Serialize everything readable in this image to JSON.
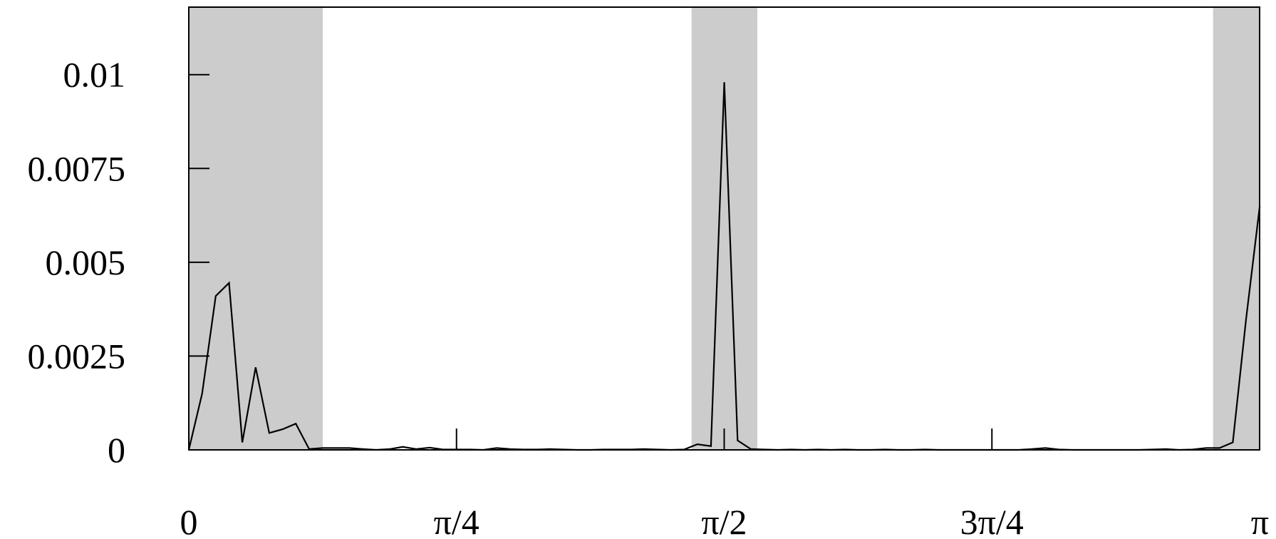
{
  "chart_data": {
    "type": "line",
    "title": "",
    "xlabel": "",
    "ylabel": "",
    "xlim": [
      0,
      3.14159265
    ],
    "ylim": [
      0,
      0.0118
    ],
    "grid": false,
    "legend": "none",
    "x_ticks": [
      {
        "value": 0,
        "label": "0"
      },
      {
        "value": 0.78539816,
        "label": "π/4"
      },
      {
        "value": 1.57079633,
        "label": "π/2"
      },
      {
        "value": 2.35619449,
        "label": "3π/4"
      },
      {
        "value": 3.14159265,
        "label": "π"
      }
    ],
    "y_ticks": [
      {
        "value": 0,
        "label": "0"
      },
      {
        "value": 0.0025,
        "label": "0.0025"
      },
      {
        "value": 0.005,
        "label": "0.005"
      },
      {
        "value": 0.0075,
        "label": "0.0075"
      },
      {
        "value": 0.01,
        "label": "0.01"
      }
    ],
    "shaded_bands": [
      {
        "x0": 0,
        "x1": 0.393
      },
      {
        "x0": 1.475,
        "x1": 1.668
      },
      {
        "x0": 3.005,
        "x1": 3.1416
      }
    ],
    "colors": {
      "band": "#cccccc",
      "line": "#000000",
      "frame": "#000000",
      "background": "#ffffff"
    },
    "series": [
      {
        "x": [
          0,
          0.039,
          0.079,
          0.118,
          0.157,
          0.196,
          0.236,
          0.275,
          0.314,
          0.353,
          0.393,
          0.432,
          0.471,
          0.511,
          0.55,
          0.589,
          0.628,
          0.668,
          0.707,
          0.746,
          0.785,
          0.825,
          0.864,
          0.903,
          0.942,
          0.982,
          1.021,
          1.06,
          1.1,
          1.139,
          1.178,
          1.217,
          1.257,
          1.296,
          1.335,
          1.374,
          1.414,
          1.453,
          1.492,
          1.532,
          1.571,
          1.61,
          1.649,
          1.689,
          1.728,
          1.767,
          1.806,
          1.846,
          1.885,
          1.924,
          1.963,
          2.003,
          2.042,
          2.081,
          2.121,
          2.16,
          2.199,
          2.238,
          2.278,
          2.317,
          2.356,
          2.395,
          2.435,
          2.474,
          2.513,
          2.553,
          2.592,
          2.631,
          2.67,
          2.71,
          2.749,
          2.788,
          2.827,
          2.867,
          2.906,
          2.945,
          2.985,
          3.024,
          3.063,
          3.102,
          3.142
        ],
        "y": [
          0,
          0.0015,
          0.0041,
          0.00445,
          0.0002,
          0.0022,
          0.00045,
          0.00055,
          0.0007,
          2e-05,
          5e-05,
          5e-05,
          5e-05,
          2e-05,
          0,
          2e-05,
          8e-05,
          2e-05,
          6e-05,
          1e-05,
          1e-05,
          1e-05,
          0,
          5e-05,
          2e-05,
          1e-05,
          1e-05,
          2e-05,
          1e-05,
          0,
          0,
          1e-05,
          1e-05,
          1e-05,
          2e-05,
          1e-05,
          0,
          1e-05,
          0.00015,
          0.0001,
          0.0098,
          0.00025,
          2e-05,
          1e-05,
          0,
          1e-05,
          0,
          1e-05,
          0,
          1e-05,
          0,
          0,
          1e-05,
          0,
          0,
          1e-05,
          0,
          0,
          0,
          0,
          0,
          0,
          0,
          2e-05,
          5e-05,
          1e-05,
          0,
          0,
          0,
          0,
          0,
          0,
          1e-05,
          2e-05,
          0,
          1e-05,
          5e-05,
          5e-05,
          0.0002,
          0.0035,
          0.0065
        ]
      }
    ]
  }
}
